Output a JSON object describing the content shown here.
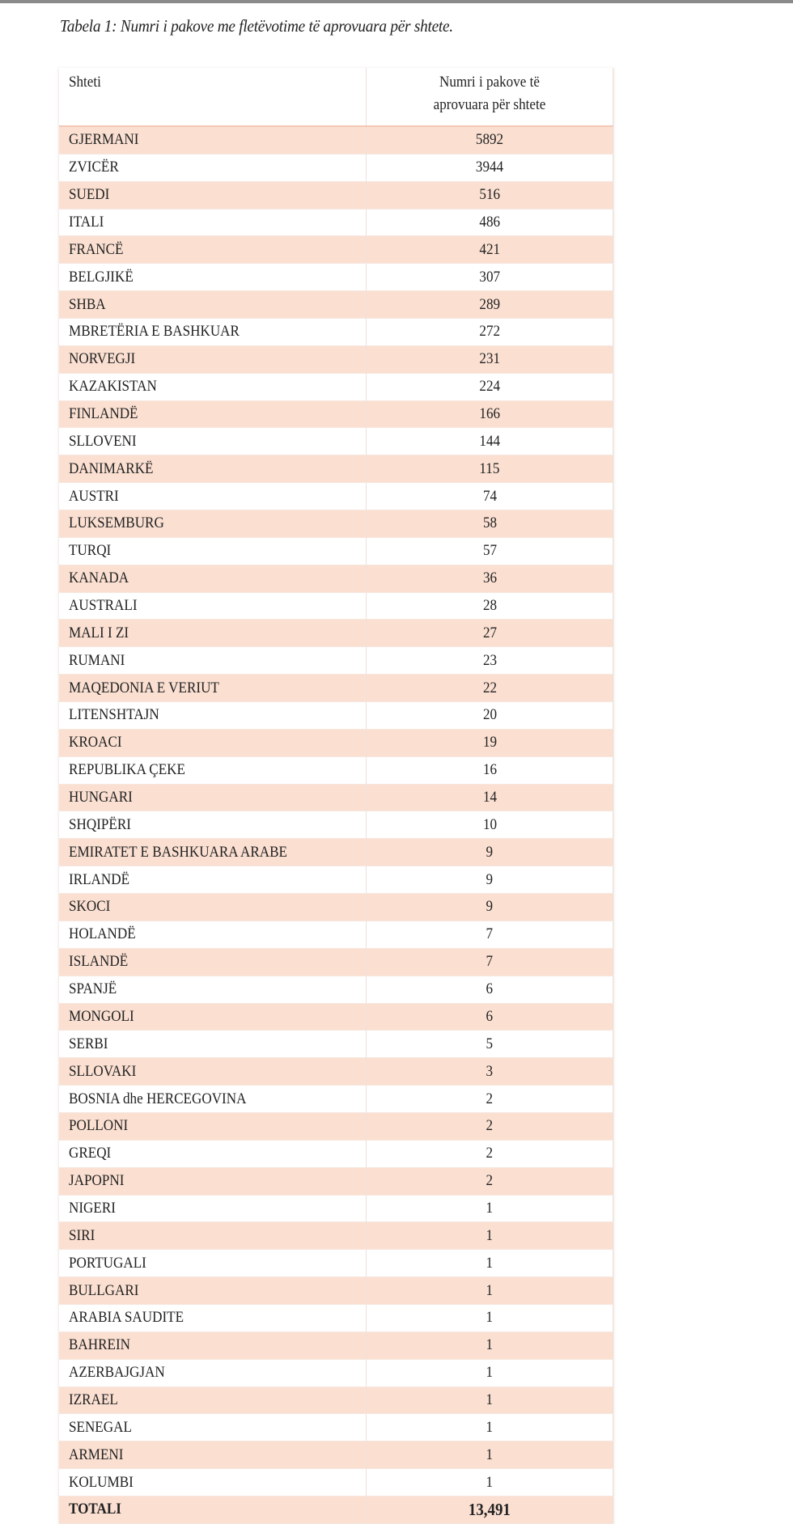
{
  "title": "Tabela 1: Numri i pakove me fletëvotime të aprovuara për shtete.",
  "table": {
    "headers": [
      "Shteti",
      "Numri i pakove të aprovuara për shtete"
    ],
    "rows": [
      [
        "GJERMANI",
        "5892"
      ],
      [
        "ZVICËR",
        "3944"
      ],
      [
        "SUEDI",
        "516"
      ],
      [
        "ITALI",
        "486"
      ],
      [
        "FRANCË",
        "421"
      ],
      [
        "BELGJIKË",
        "307"
      ],
      [
        "SHBA",
        "289"
      ],
      [
        "MBRETËRIA E BASHKUAR",
        "272"
      ],
      [
        "NORVEGJI",
        "231"
      ],
      [
        "KAZAKISTAN",
        "224"
      ],
      [
        "FINLANDË",
        "166"
      ],
      [
        "SLLOVENI",
        "144"
      ],
      [
        "DANIMARKË",
        "115"
      ],
      [
        "AUSTRI",
        "74"
      ],
      [
        "LUKSEMBURG",
        "58"
      ],
      [
        "TURQI",
        "57"
      ],
      [
        "KANADA",
        "36"
      ],
      [
        "AUSTRALI",
        "28"
      ],
      [
        "MALI I ZI",
        "27"
      ],
      [
        "RUMANI",
        "23"
      ],
      [
        "MAQEDONIA E VERIUT",
        "22"
      ],
      [
        "LITENSHTAJN",
        "20"
      ],
      [
        "KROACI",
        "19"
      ],
      [
        "REPUBLIKA ÇEKE",
        "16"
      ],
      [
        "HUNGARI",
        "14"
      ],
      [
        "SHQIPËRI",
        "10"
      ],
      [
        "EMIRATET E BASHKUARA ARABE",
        "9"
      ],
      [
        "IRLANDË",
        "9"
      ],
      [
        "SKOCI",
        "9"
      ],
      [
        "HOLANDË",
        "7"
      ],
      [
        "ISLANDË",
        "7"
      ],
      [
        "SPANJË",
        "6"
      ],
      [
        "MONGOLI",
        "6"
      ],
      [
        "SERBI",
        "5"
      ],
      [
        "SLLOVAKI",
        "3"
      ],
      [
        "BOSNIA dhe HERCEGOVINA",
        "2"
      ],
      [
        "POLLONI",
        "2"
      ],
      [
        "GREQI",
        "2"
      ],
      [
        "JAPOPNI",
        "2"
      ],
      [
        "NIGERI",
        "1"
      ],
      [
        "SIRI",
        "1"
      ],
      [
        "PORTUGALI",
        "1"
      ],
      [
        "BULLGARI",
        "1"
      ],
      [
        "ARABIA SAUDITE",
        "1"
      ],
      [
        "BAHREIN",
        "1"
      ],
      [
        "AZERBAJGJAN",
        "1"
      ],
      [
        "IZRAEL",
        "1"
      ],
      [
        "SENEGAL",
        "1"
      ],
      [
        "ARMENI",
        "1"
      ],
      [
        "KOLUMBI",
        "1"
      ]
    ],
    "total": [
      "TOTALI",
      "13,491"
    ]
  },
  "colors": {
    "row_alt": "#fbe0d2",
    "top_bar": "#8a8a8a"
  }
}
